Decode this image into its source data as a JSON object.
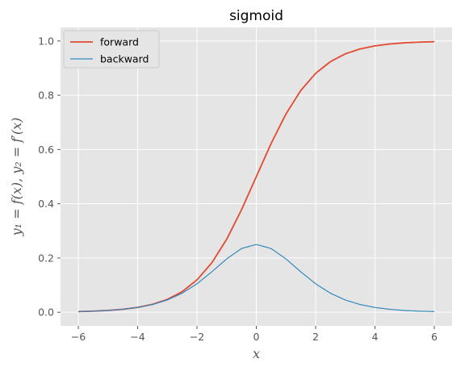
{
  "chart_data": {
    "type": "line",
    "title": "sigmoid",
    "xlabel": "x",
    "ylabel": "y₁ = f(x), y₂ = f′(x)",
    "xlim": [
      -6.6,
      6.6
    ],
    "ylim": [
      -0.05,
      1.05
    ],
    "xticks": [
      -6,
      -4,
      -2,
      0,
      2,
      4,
      6
    ],
    "xtick_labels": [
      "−6",
      "−4",
      "−2",
      "0",
      "2",
      "4",
      "6"
    ],
    "yticks": [
      0.0,
      0.2,
      0.4,
      0.6,
      0.8,
      1.0
    ],
    "ytick_labels": [
      "0.0",
      "0.2",
      "0.4",
      "0.6",
      "0.8",
      "1.0"
    ],
    "grid": true,
    "legend_position": "top-left",
    "series": [
      {
        "name": "forward",
        "color": "#E24A33",
        "x": [
          -6,
          -5.5,
          -5,
          -4.5,
          -4,
          -3.5,
          -3,
          -2.5,
          -2,
          -1.5,
          -1,
          -0.5,
          0,
          0.5,
          1,
          1.5,
          2,
          2.5,
          3,
          3.5,
          4,
          4.5,
          5,
          5.5,
          6
        ],
        "y": [
          0.0025,
          0.0041,
          0.0067,
          0.011,
          0.018,
          0.0293,
          0.0474,
          0.0759,
          0.1192,
          0.1824,
          0.2689,
          0.3775,
          0.5,
          0.6225,
          0.7311,
          0.8176,
          0.8808,
          0.9241,
          0.9526,
          0.9707,
          0.982,
          0.989,
          0.9933,
          0.9959,
          0.9975
        ]
      },
      {
        "name": "backward",
        "color": "#348ABD",
        "x": [
          -6,
          -5.5,
          -5,
          -4.5,
          -4,
          -3.5,
          -3,
          -2.5,
          -2,
          -1.5,
          -1,
          -0.5,
          0,
          0.5,
          1,
          1.5,
          2,
          2.5,
          3,
          3.5,
          4,
          4.5,
          5,
          5.5,
          6
        ],
        "y": [
          0.0025,
          0.0041,
          0.0066,
          0.0109,
          0.0177,
          0.0285,
          0.0452,
          0.0701,
          0.105,
          0.1491,
          0.1966,
          0.235,
          0.25,
          0.235,
          0.1966,
          0.1491,
          0.105,
          0.0701,
          0.0452,
          0.0285,
          0.0177,
          0.0109,
          0.0066,
          0.0041,
          0.0025
        ]
      }
    ]
  }
}
